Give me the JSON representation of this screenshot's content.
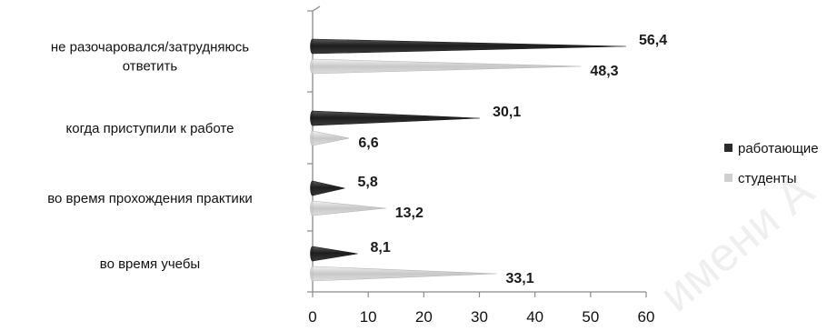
{
  "chart_data": {
    "type": "bar",
    "orientation": "horizontal",
    "bar_shape": "cone",
    "categories": [
      [
        "не разочаровался/затрудняюсь",
        "ответить"
      ],
      [
        "когда приступили к работе"
      ],
      [
        "во время прохождения практики"
      ],
      [
        "во время учебы"
      ]
    ],
    "series": [
      {
        "name": "работающие",
        "color": "#2b2b2b",
        "values": [
          56.4,
          30.1,
          5.8,
          8.1
        ],
        "labels": [
          "56,4",
          "30,1",
          "5,8",
          "8,1"
        ]
      },
      {
        "name": "студенты",
        "color": "#cfcfcf",
        "values": [
          48.3,
          6.6,
          13.2,
          33.1
        ],
        "labels": [
          "48,3",
          "6,6",
          "13,2",
          "33,1"
        ]
      }
    ],
    "xlim": [
      0,
      60
    ],
    "xticks": [
      "0",
      "10",
      "20",
      "30",
      "40",
      "50",
      "60"
    ],
    "legend_position": "right",
    "grid": false
  },
  "watermark_text": "имени А"
}
